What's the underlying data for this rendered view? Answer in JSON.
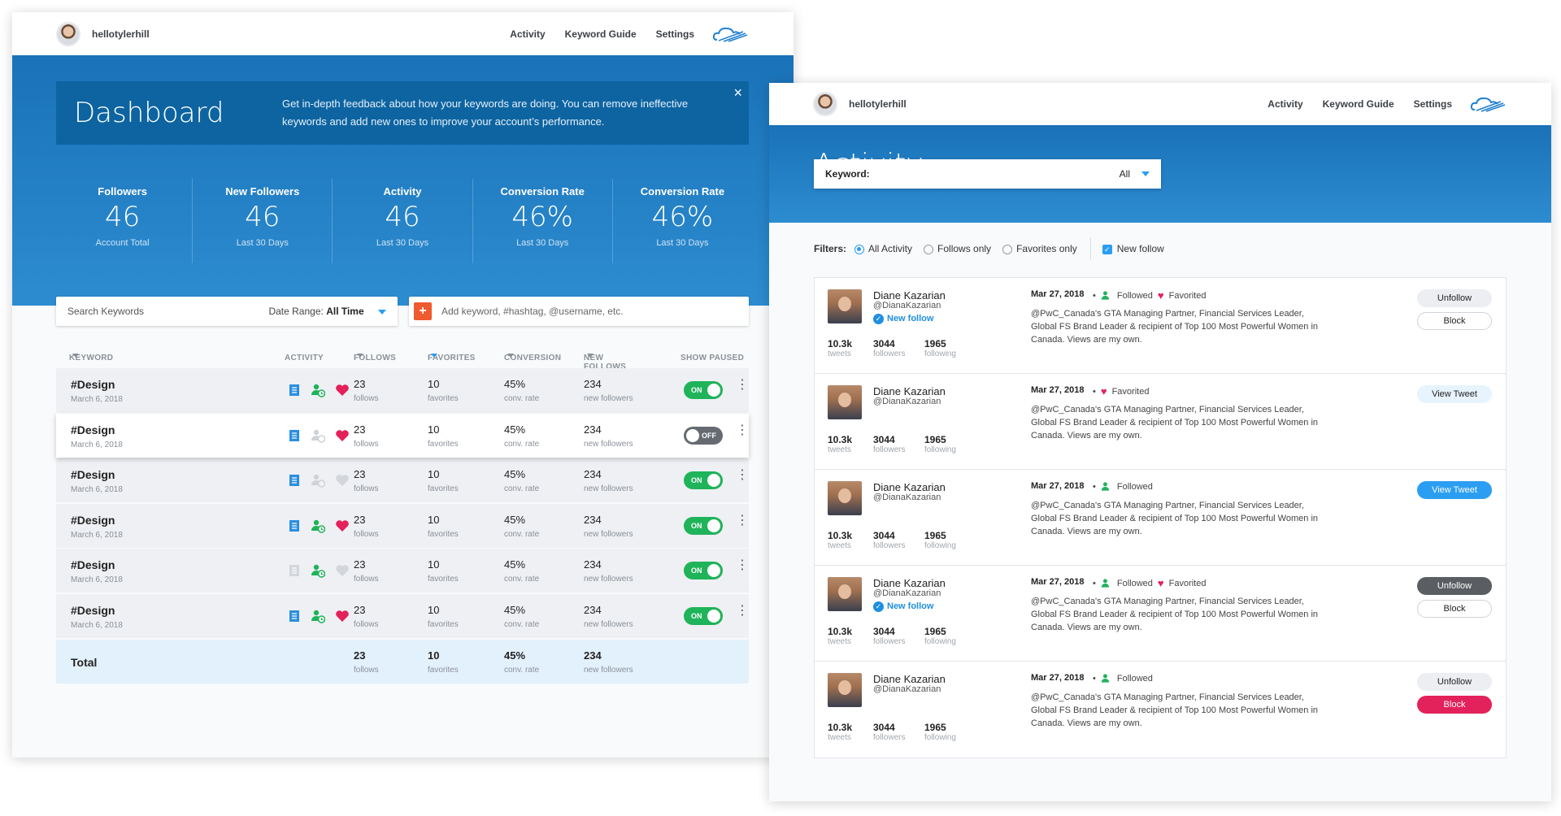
{
  "dashboard": {
    "username": "hellotylerhill",
    "nav": [
      "Activity",
      "Keyword Guide",
      "Settings"
    ],
    "banner": {
      "title": "Dashboard",
      "text": "Get in-depth feedback about how your keywords are doing. You can remove ineffective keywords and add new ones to improve your account’s performance.",
      "close": "×"
    },
    "stats": [
      {
        "label": "Followers",
        "value": "46",
        "sub": "Account Total"
      },
      {
        "label": "New Followers",
        "value": "46",
        "sub": "Last 30 Days"
      },
      {
        "label": "Activity",
        "value": "46",
        "sub": "Last 30 Days"
      },
      {
        "label": "Conversion Rate",
        "value": "46%",
        "sub": "Last 30 Days"
      },
      {
        "label": "Conversion Rate",
        "value": "46%",
        "sub": "Last 30 Days"
      }
    ],
    "search_placeholder": "Search Keywords",
    "date_range_label": "Date Range:",
    "date_range_value": "All Time",
    "add_placeholder": "Add keyword, #hashtag, @username, etc.",
    "columns": {
      "keyword": "KEYWORD",
      "activity": "ACTIVITY",
      "follows": "FOLLOWS",
      "favorites": "FAVORITES",
      "conversion": "CONVERSION",
      "new_follows": "NEW FOLLOWS",
      "show_paused": "SHOW PAUSED"
    },
    "rows": [
      {
        "keyword": "#Design",
        "date": "March 6, 2018",
        "follows": "23",
        "follows_unit": "follows",
        "favorites": "10",
        "favorites_unit": "favorites",
        "conversion": "45%",
        "conversion_unit": "conv. rate",
        "new_followers": "234",
        "new_followers_unit": "new followers",
        "toggle": "ON"
      },
      {
        "keyword": "#Design",
        "date": "March 6, 2018",
        "follows": "23",
        "follows_unit": "follows",
        "favorites": "10",
        "favorites_unit": "favorites",
        "conversion": "45%",
        "conversion_unit": "conv. rate",
        "new_followers": "234",
        "new_followers_unit": "new followers",
        "toggle": "OFF"
      },
      {
        "keyword": "#Design",
        "date": "March 6, 2018",
        "follows": "23",
        "follows_unit": "follows",
        "favorites": "10",
        "favorites_unit": "favorites",
        "conversion": "45%",
        "conversion_unit": "conv. rate",
        "new_followers": "234",
        "new_followers_unit": "new followers",
        "toggle": "ON"
      },
      {
        "keyword": "#Design",
        "date": "March 6, 2018",
        "follows": "23",
        "follows_unit": "follows",
        "favorites": "10",
        "favorites_unit": "favorites",
        "conversion": "45%",
        "conversion_unit": "conv. rate",
        "new_followers": "234",
        "new_followers_unit": "new followers",
        "toggle": "ON"
      },
      {
        "keyword": "#Design",
        "date": "March 6, 2018",
        "follows": "23",
        "follows_unit": "follows",
        "favorites": "10",
        "favorites_unit": "favorites",
        "conversion": "45%",
        "conversion_unit": "conv. rate",
        "new_followers": "234",
        "new_followers_unit": "new followers",
        "toggle": "ON"
      },
      {
        "keyword": "#Design",
        "date": "March 6, 2018",
        "follows": "23",
        "follows_unit": "follows",
        "favorites": "10",
        "favorites_unit": "favorites",
        "conversion": "45%",
        "conversion_unit": "conv. rate",
        "new_followers": "234",
        "new_followers_unit": "new followers",
        "toggle": "ON"
      }
    ],
    "total": {
      "label": "Total",
      "follows": "23",
      "follows_unit": "follows",
      "favorites": "10",
      "favorites_unit": "favorites",
      "conversion": "45%",
      "conversion_unit": "conv. rate",
      "new_followers": "234",
      "new_followers_unit": "new followers"
    }
  },
  "activity": {
    "username": "hellotylerhill",
    "nav": [
      "Activity",
      "Keyword Guide",
      "Settings"
    ],
    "title": "Activity",
    "keyword_label": "Keyword:",
    "keyword_value": "All",
    "filters_label": "Filters:",
    "filter_options": [
      "All Activity",
      "Follows only",
      "Favorites only"
    ],
    "new_follow_label": "New follow",
    "items": [
      {
        "name": "Diane Kazarian",
        "handle": "@DianaKazarian",
        "new_follow": "New follow",
        "tweets": "10.3k",
        "tweets_label": "tweets",
        "followers": "3044",
        "followers_label": "followers",
        "following": "1965",
        "following_label": "following",
        "date": "Mar 27, 2018",
        "followed": "Followed",
        "favorited": "Favorited",
        "text": "@PwC_Canada's GTA Managing Partner, Financial Services Leader, Global FS Brand Leader & recipient of Top 100 Most Powerful Women in Canada. Views are my own.",
        "btn1": "Unfollow",
        "btn2": "Block"
      },
      {
        "name": "Diane Kazarian",
        "handle": "@DianaKazarian",
        "tweets": "10.3k",
        "tweets_label": "tweets",
        "followers": "3044",
        "followers_label": "followers",
        "following": "1965",
        "following_label": "following",
        "date": "Mar 27, 2018",
        "favorited": "Favorited",
        "text": "@PwC_Canada's GTA Managing Partner, Financial Services Leader, Global FS Brand Leader & recipient of Top 100 Most Powerful Women in Canada. Views are my own.",
        "btn1": "View Tweet"
      },
      {
        "name": "Diane Kazarian",
        "handle": "@DianaKazarian",
        "tweets": "10.3k",
        "tweets_label": "tweets",
        "followers": "3044",
        "followers_label": "followers",
        "following": "1965",
        "following_label": "following",
        "date": "Mar 27, 2018",
        "followed": "Followed",
        "text": "@PwC_Canada's GTA Managing Partner, Financial Services Leader, Global FS Brand Leader & recipient of Top 100 Most Powerful Women in Canada. Views are my own.",
        "btn1": "View Tweet"
      },
      {
        "name": "Diane Kazarian",
        "handle": "@DianaKazarian",
        "new_follow": "New follow",
        "tweets": "10.3k",
        "tweets_label": "tweets",
        "followers": "3044",
        "followers_label": "followers",
        "following": "1965",
        "following_label": "following",
        "date": "Mar 27, 2018",
        "followed": "Followed",
        "favorited": "Favorited",
        "text": "@PwC_Canada's GTA Managing Partner, Financial Services Leader, Global FS Brand Leader & recipient of Top 100 Most Powerful Women in Canada. Views are my own.",
        "btn1": "Unfollow",
        "btn2": "Block"
      },
      {
        "name": "Diane Kazarian",
        "handle": "@DianaKazarian",
        "tweets": "10.3k",
        "tweets_label": "tweets",
        "followers": "3044",
        "followers_label": "followers",
        "following": "1965",
        "following_label": "following",
        "date": "Mar 27, 2018",
        "followed": "Followed",
        "text": "@PwC_Canada's GTA Managing Partner, Financial Services Leader, Global FS Brand Leader & recipient of Top 100 Most Powerful Women in Canada. Views are my own.",
        "btn1": "Unfollow",
        "btn2": "Block"
      }
    ]
  },
  "colors": {
    "primary": "#1a72b8",
    "banner": "#0d64a1",
    "on": "#1fb35a",
    "heart": "#e3215b",
    "accent": "#2a9df4",
    "add": "#ef5a2f"
  }
}
